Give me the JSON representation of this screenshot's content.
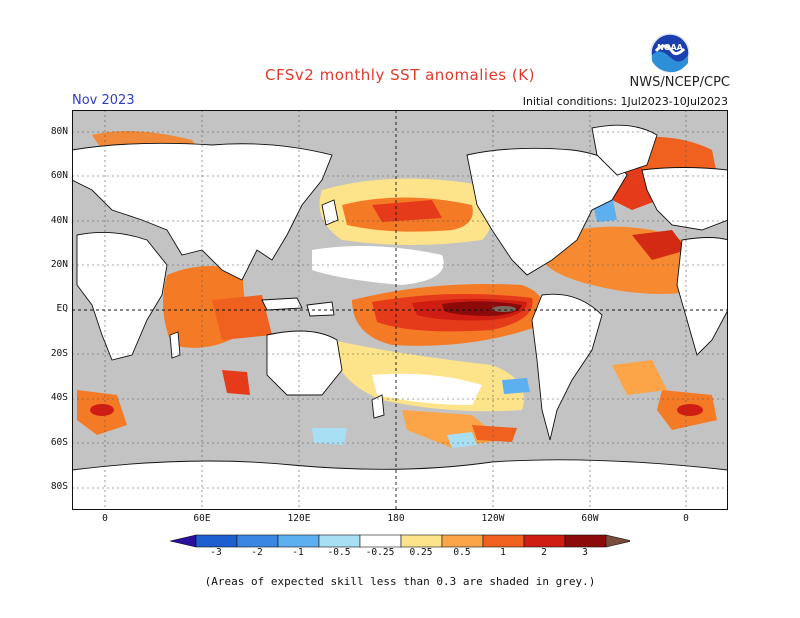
{
  "title": "CFSv2 monthly SST anomalies (K)",
  "agency": "NWS/NCEP/CPC",
  "logo_text": "NOAA",
  "month": "Nov 2023",
  "initial_conditions": "Initial conditions: 1Jul2023-10Jul2023",
  "lat_labels": [
    "80N",
    "60N",
    "40N",
    "20N",
    "EQ",
    "20S",
    "40S",
    "60S",
    "80S"
  ],
  "lon_labels": [
    "0",
    "60E",
    "120E",
    "180",
    "120W",
    "60W",
    "0"
  ],
  "colorbar": {
    "ticks": [
      "-3",
      "-2",
      "-1",
      "-0.5",
      "-0.25",
      "0.25",
      "0.5",
      "1",
      "2",
      "3"
    ],
    "colors": [
      "#2b0f9e",
      "#1e5fcf",
      "#3a86e0",
      "#5cb0f0",
      "#a8dff5",
      "#ffffff",
      "#fde38a",
      "#fba548",
      "#f0601e",
      "#cf1d14",
      "#8c0a0a",
      "#7a4a3a"
    ]
  },
  "note": "(Areas of expected skill less than 0.3 are shaded in grey.)",
  "colors": {
    "land": "#ffffff",
    "grey": "#c3c3c3",
    "title": "#e03a2a",
    "month": "#2b3fbf"
  }
}
